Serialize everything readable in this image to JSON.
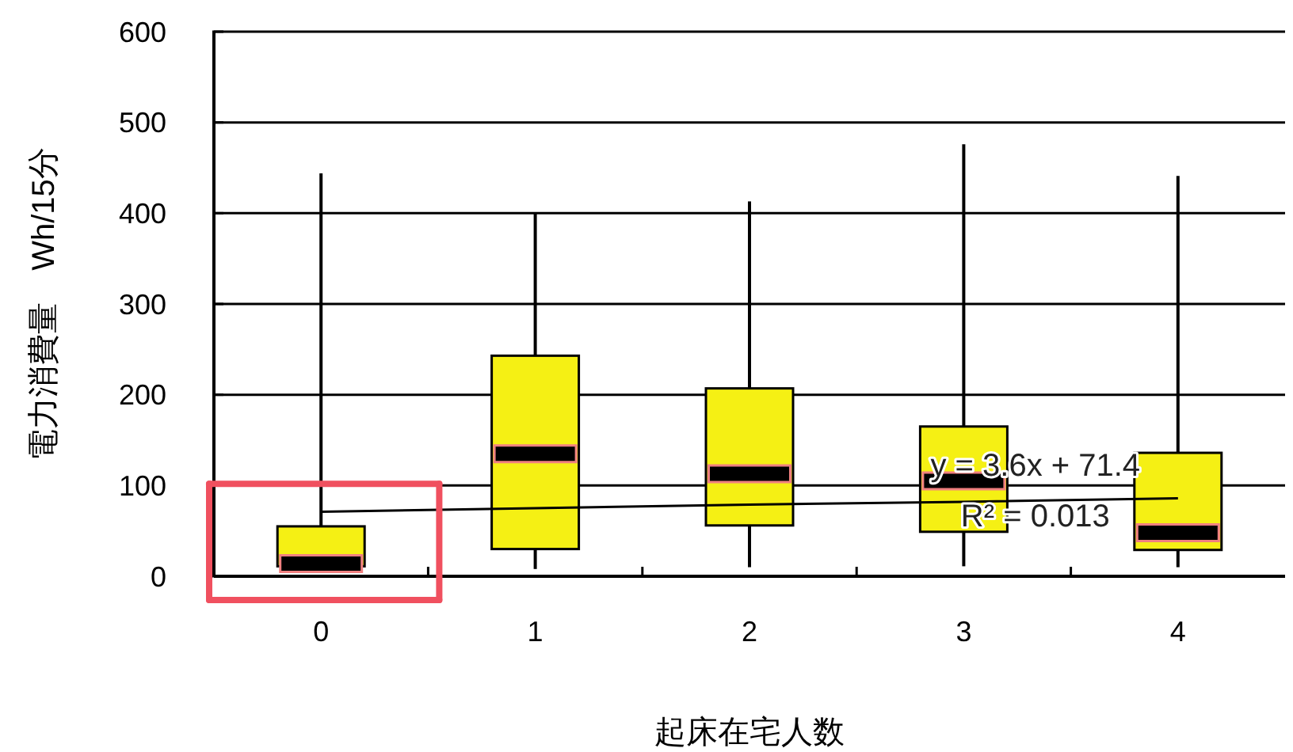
{
  "chart_data": {
    "type": "box",
    "xlabel": "起床在宅人数",
    "ylabel": "電力消費量　Wh/15分",
    "categories": [
      "0",
      "1",
      "2",
      "3",
      "4"
    ],
    "color": "#f5f014",
    "ylim": [
      0,
      600
    ],
    "yticks": [
      0,
      100,
      200,
      300,
      400,
      500,
      600
    ],
    "grid": "y",
    "boxes": [
      {
        "low": 8,
        "q1": 11,
        "median": 14,
        "q3": 55,
        "high": 444
      },
      {
        "low": 8,
        "q1": 30,
        "median": 135,
        "q3": 243,
        "high": 400
      },
      {
        "low": 10,
        "q1": 56,
        "median": 113,
        "q3": 207,
        "high": 413
      },
      {
        "low": 11,
        "q1": 49,
        "median": 105,
        "q3": 165,
        "high": 476
      },
      {
        "low": 10,
        "q1": 29,
        "median": 48,
        "q3": 136,
        "high": 441
      }
    ],
    "series": [
      {
        "type": "line",
        "color": "#000000",
        "values": [
          71,
          75,
          79,
          82,
          86
        ]
      }
    ],
    "annotations": [
      "y = 3.6x + 71.4",
      "R² = 0.013"
    ]
  }
}
